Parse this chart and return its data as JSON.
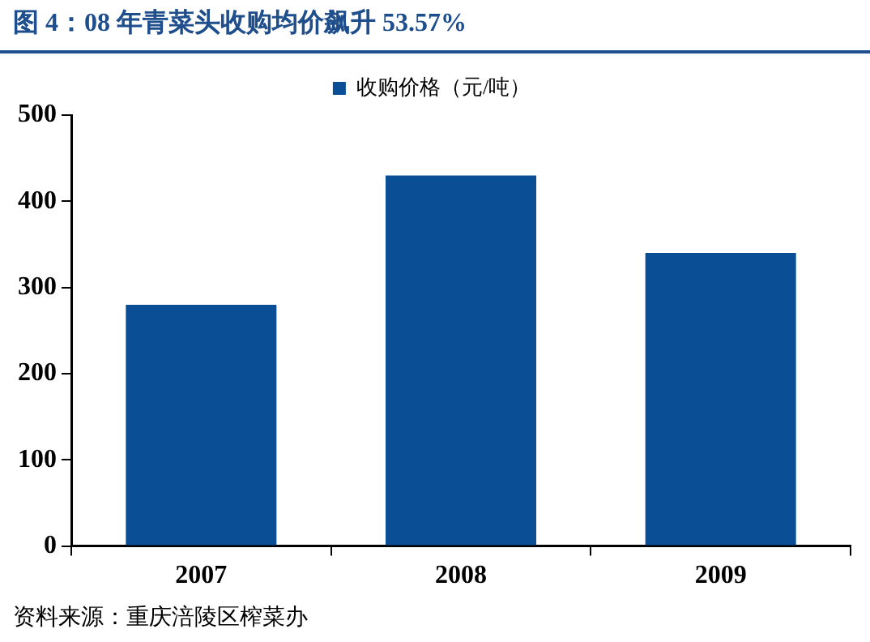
{
  "chart_data": {
    "type": "bar",
    "title": "图 4：08 年青菜头收购均价飙升 53.57%",
    "categories": [
      "2007",
      "2008",
      "2009"
    ],
    "series": [
      {
        "name": "收购价格（元/吨）",
        "color": "#0a4f96",
        "values": [
          280,
          430,
          340
        ]
      }
    ],
    "ylim": [
      0,
      500
    ],
    "yticks": [
      0,
      100,
      200,
      300,
      400,
      500
    ],
    "grid": false,
    "legend": "top",
    "annotations": [
      "资料来源：重庆涪陵区榨菜办"
    ]
  }
}
